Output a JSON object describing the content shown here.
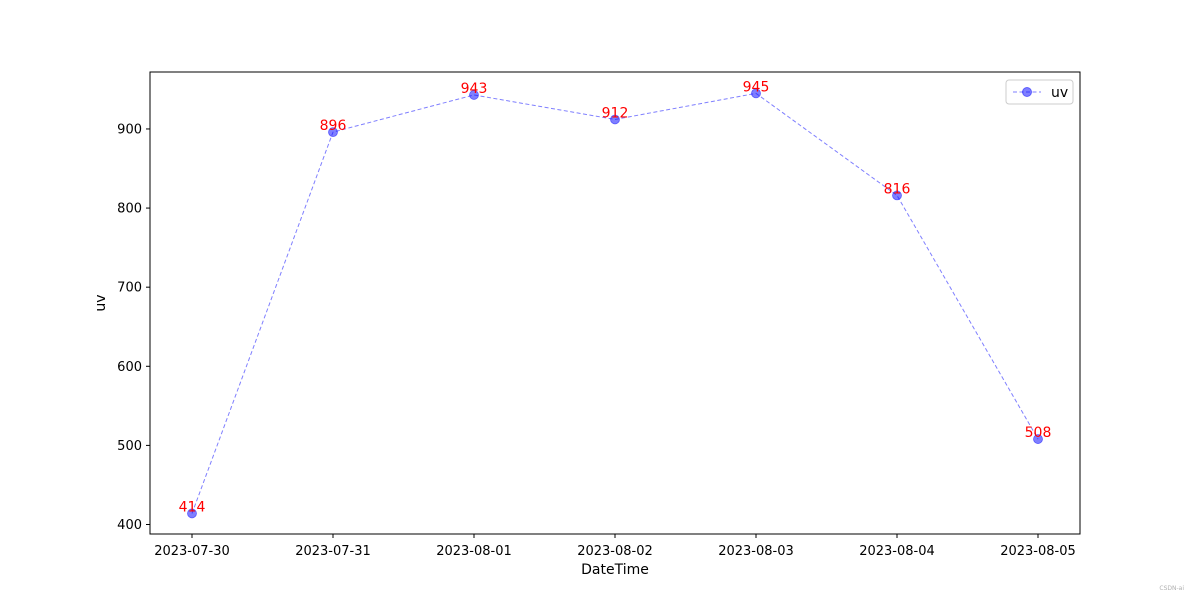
{
  "chart_data": {
    "type": "line",
    "title": "",
    "xlabel": "DateTime",
    "ylabel": "uv",
    "x": [
      "2023-07-30",
      "2023-07-31",
      "2023-08-01",
      "2023-08-02",
      "2023-08-03",
      "2023-08-04",
      "2023-08-05"
    ],
    "series": [
      {
        "name": "uv",
        "values": [
          414,
          896,
          943,
          912,
          945,
          816,
          508
        ],
        "color": "#0000ff",
        "line_style": "dashed",
        "marker": "circle"
      }
    ],
    "data_label_color": "#ff0000",
    "yticks": [
      400,
      500,
      600,
      700,
      800,
      900
    ],
    "ylim": [
      388,
      972
    ],
    "grid": false,
    "legend_position": "top-right"
  },
  "watermark": "CSDN-ai"
}
